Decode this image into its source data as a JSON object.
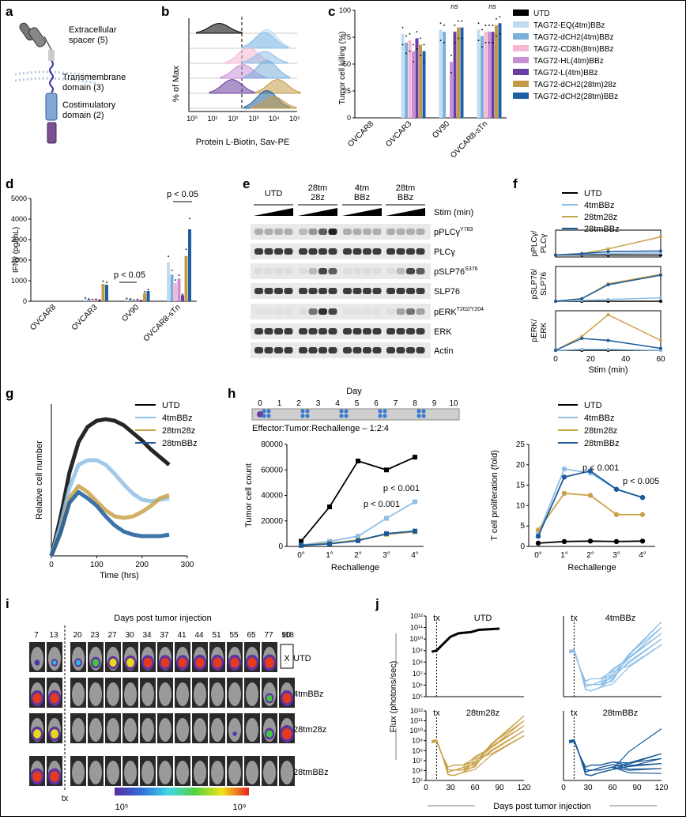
{
  "colors": {
    "UTD": "#000000",
    "EQ": "#bfdcf2",
    "dCH2": "#7aaedb",
    "CD8h": "#f6b7d3",
    "HL": "#c98fd6",
    "L": "#6a3ea1",
    "dCH2_28": "#c59a47",
    "dCH2_28BBz": "#1e5fa3",
    "c4tm": "#8fbfe6",
    "c28z": "#c9a24a",
    "c28BBz": "#1a5a9a"
  },
  "panels": {
    "a": {
      "letter": "a",
      "labels": [
        "Extracellular",
        "spacer (5)",
        "Transmembrane",
        "domain (3)",
        "Costimulatory",
        "domain (2)"
      ]
    },
    "b": {
      "letter": "b",
      "ylabel": "% of Max",
      "xlabel": "Protein L-Biotin, Sav-PE",
      "ticks": [
        "10⁰",
        "10¹",
        "10²",
        "10³",
        "10⁴",
        "10⁵"
      ]
    },
    "c": {
      "letter": "c",
      "ylabel": "Tumor cell killing (%)",
      "yticks": [
        "0",
        "25",
        "50",
        "75",
        "100"
      ],
      "ns": "ns"
    },
    "d": {
      "letter": "d",
      "ylabel": "IFNγ (pg/mL)",
      "yticks": [
        "0",
        "1000",
        "2000",
        "3000",
        "4000",
        "5000"
      ],
      "p1": "p < 0.05",
      "p2": "p < 0.05"
    },
    "e": {
      "letter": "e",
      "groups": [
        "UTD",
        "28tm\n28z",
        "4tm\nBBz",
        "28tm\nBBz"
      ],
      "stim": "Stim (min)",
      "rows": [
        "pPLCγ",
        "PLCγ",
        "pSLP76",
        "SLP76",
        "pERK",
        "ERK",
        "Actin"
      ],
      "row_sup": [
        "Y783",
        "",
        "S376",
        "",
        "T202/Y204",
        "",
        ""
      ]
    },
    "f": {
      "letter": "f",
      "xlabel": "Stim (min)",
      "ylabels": [
        "pPLCγ/\nPLCγ",
        "pSLP76/\nSLP76",
        "pERK/\nERK"
      ],
      "xticks": [
        "0",
        "20",
        "40",
        "60"
      ],
      "legend": [
        "UTD",
        "4tmBBz",
        "28tm28z",
        "28tmBBz"
      ]
    },
    "g": {
      "letter": "g",
      "ylabel": "Relative cell number",
      "xlabel": "Time (hrs)",
      "xticks": [
        "0",
        "100",
        "200",
        "300"
      ],
      "legend": [
        "UTD",
        "4tmBBz",
        "28tm28z",
        "28tmBBz"
      ]
    },
    "h": {
      "letter": "h",
      "day": "Day",
      "days": [
        "0",
        "1",
        "2",
        "3",
        "4",
        "5",
        "6",
        "7",
        "8",
        "9",
        "10"
      ],
      "ratio": "Effector:Tumor:Rechallenge – 1:2:4",
      "ylabel1": "Tumor cell count",
      "ylabel2": "T cell proliferation (fold)",
      "xlabel": "Rechallenge",
      "xticks": [
        "0°",
        "1°",
        "2°",
        "3°",
        "4°"
      ],
      "yticks1": [
        "0",
        "20000",
        "40000",
        "60000",
        "80000"
      ],
      "yticks2": [
        "0",
        "5",
        "10",
        "15",
        "20",
        "25"
      ],
      "p1a": "p < 0.001",
      "p1b": "p < 0.001",
      "p2a": "p < 0.001",
      "p2b": "p < 0.005",
      "legend": [
        "UTD",
        "4tmBBz",
        "28tm28z",
        "28tmBBz"
      ]
    },
    "i": {
      "letter": "i",
      "title": "Days post tumor injection",
      "days": [
        "7",
        "13",
        "20",
        "23",
        "27",
        "30",
        "34",
        "37",
        "41",
        "44",
        "51",
        "55",
        "65",
        "77",
        "90",
        "118"
      ],
      "rows": [
        "UTD",
        "4tmBBz",
        "28tm28z",
        "28tmBBz"
      ],
      "tx": "tx",
      "x": "X",
      "cmin": "10⁵",
      "cmax": "10⁹"
    },
    "j": {
      "letter": "j",
      "ylabel": "Flux (photons/sec)",
      "xlabel": "Days post tumor injection",
      "titles": [
        "UTD",
        "4tmBBz",
        "28tm28z",
        "28tmBBz"
      ],
      "tx": "tx",
      "xticks": [
        "0",
        "30",
        "60",
        "90",
        "120"
      ],
      "yticks": [
        "10⁵",
        "10⁶",
        "10⁷",
        "10⁸",
        "10⁹",
        "10¹⁰",
        "10¹¹",
        "10¹²"
      ]
    }
  },
  "chart_data": [
    {
      "type": "bar",
      "panel": "c",
      "title": "",
      "ylabel": "Tumor cell killing (%)",
      "ylim": [
        0,
        100
      ],
      "categories": [
        "OVCAR8",
        "OVCAR3",
        "OV90",
        "OVCAR8-sTn"
      ],
      "series": [
        {
          "name": "UTD",
          "values": [
            0,
            0,
            0,
            0
          ]
        },
        {
          "name": "TAG72-EQ(4tm)BBz",
          "values": [
            0,
            78,
            82,
            82
          ]
        },
        {
          "name": "TAG72-dCH2(4tm)BBz",
          "values": [
            0,
            70,
            80,
            76
          ]
        },
        {
          "name": "TAG72-CD8h(8tm)BBz",
          "values": [
            0,
            72,
            0,
            80
          ]
        },
        {
          "name": "TAG72-HL(4tm)BBz",
          "values": [
            0,
            62,
            52,
            80
          ]
        },
        {
          "name": "TAG72-L(4tm)BBz",
          "values": [
            0,
            74,
            80,
            80
          ]
        },
        {
          "name": "TAG72-dCH2(28tm)28z",
          "values": [
            0,
            68,
            84,
            86
          ]
        },
        {
          "name": "TAG72-dCH2(28tm)BBz",
          "values": [
            0,
            62,
            84,
            88
          ]
        }
      ]
    },
    {
      "type": "bar",
      "panel": "d",
      "ylabel": "IFNγ (pg/mL)",
      "ylim": [
        0,
        5000
      ],
      "categories": [
        "OVCAR8",
        "OVCAR3",
        "OV90",
        "OVCAR8-sTn"
      ],
      "series": [
        {
          "name": "UTD",
          "values": [
            0,
            0,
            0,
            0
          ]
        },
        {
          "name": "EQ",
          "values": [
            0,
            150,
            120,
            1900
          ]
        },
        {
          "name": "dCH2",
          "values": [
            0,
            100,
            100,
            1300
          ]
        },
        {
          "name": "CD8h",
          "values": [
            0,
            80,
            60,
            900
          ]
        },
        {
          "name": "HL",
          "values": [
            0,
            90,
            80,
            1100
          ]
        },
        {
          "name": "L",
          "values": [
            0,
            60,
            40,
            300
          ]
        },
        {
          "name": "28z",
          "values": [
            0,
            850,
            400,
            2200
          ]
        },
        {
          "name": "28BBz",
          "values": [
            0,
            800,
            500,
            3500
          ]
        }
      ]
    },
    {
      "type": "line",
      "panel": "f",
      "x": [
        0,
        15,
        30,
        60
      ],
      "subplots": [
        {
          "ylabel": "pPLCγ/PLCγ",
          "series": [
            {
              "name": "UTD",
              "values": [
                0.3,
                0.3,
                0.3,
                0.3
              ]
            },
            {
              "name": "4tmBBz",
              "values": [
                0.3,
                0.4,
                0.5,
                0.6
              ]
            },
            {
              "name": "28tm28z",
              "values": [
                0.3,
                0.5,
                1.2,
                3
              ]
            },
            {
              "name": "28tmBBz",
              "values": [
                0.3,
                0.5,
                0.8,
                0.9
              ]
            }
          ]
        },
        {
          "ylabel": "pSLP76/SLP76",
          "series": [
            {
              "name": "UTD",
              "values": [
                0,
                0,
                0,
                0
              ]
            },
            {
              "name": "4tmBBz",
              "values": [
                0,
                0.05,
                0.1,
                0.2
              ]
            },
            {
              "name": "28tm28z",
              "values": [
                0,
                0.15,
                1.0,
                1.55
              ]
            },
            {
              "name": "28tmBBz",
              "values": [
                0,
                0.15,
                0.95,
                1.5
              ]
            }
          ]
        },
        {
          "ylabel": "pERK/ERK",
          "series": [
            {
              "name": "UTD",
              "values": [
                0,
                0,
                0,
                0
              ]
            },
            {
              "name": "4tmBBz",
              "values": [
                0,
                0.05,
                0.05,
                0
              ]
            },
            {
              "name": "28tm28z",
              "values": [
                0,
                0.7,
                1.8,
                0.5
              ]
            },
            {
              "name": "28tmBBz",
              "values": [
                0,
                0.6,
                0.5,
                0.1
              ]
            }
          ]
        }
      ]
    },
    {
      "type": "line",
      "panel": "g",
      "xlabel": "Time (hrs)",
      "ylabel": "Relative cell number",
      "xlim": [
        0,
        300
      ],
      "series": [
        {
          "name": "UTD",
          "x": [
            0,
            20,
            40,
            60,
            80,
            100,
            120,
            140,
            160,
            180,
            200,
            220,
            240,
            260
          ],
          "values": [
            0,
            2.5,
            5.5,
            7.5,
            8.5,
            8.9,
            9.0,
            8.9,
            8.6,
            8.1,
            7.6,
            7.0,
            6.5,
            6.0
          ]
        },
        {
          "name": "4tmBBz",
          "x": [
            0,
            20,
            40,
            60,
            80,
            100,
            120,
            140,
            160,
            180,
            200,
            220,
            240,
            260
          ],
          "values": [
            0,
            2,
            4.5,
            6.0,
            6.3,
            6.3,
            6.0,
            5.4,
            4.7,
            4.1,
            3.7,
            3.6,
            3.7,
            3.8
          ]
        },
        {
          "name": "28tm28z",
          "x": [
            0,
            20,
            40,
            60,
            80,
            100,
            120,
            140,
            160,
            180,
            200,
            220,
            240,
            260
          ],
          "values": [
            0,
            1.5,
            3.8,
            4.6,
            4.2,
            3.6,
            3.0,
            2.6,
            2.5,
            2.6,
            2.9,
            3.3,
            3.8,
            4.0
          ]
        },
        {
          "name": "28tmBBz",
          "x": [
            0,
            20,
            40,
            60,
            80,
            100,
            120,
            140,
            160,
            180,
            200,
            220,
            240,
            260
          ],
          "values": [
            0,
            1.5,
            3.5,
            4.2,
            3.8,
            3.3,
            2.6,
            2.0,
            1.6,
            1.4,
            1.3,
            1.3,
            1.3,
            1.4
          ]
        }
      ]
    },
    {
      "type": "line",
      "panel": "h-tumor",
      "ylabel": "Tumor cell count",
      "xlabel": "Rechallenge",
      "categories": [
        "0°",
        "1°",
        "2°",
        "3°",
        "4°"
      ],
      "ylim": [
        0,
        80000
      ],
      "series": [
        {
          "name": "UTD",
          "values": [
            4000,
            31000,
            67000,
            60000,
            70000
          ]
        },
        {
          "name": "4tmBBz",
          "values": [
            1000,
            4000,
            8000,
            22000,
            35000
          ]
        },
        {
          "name": "28tm28z",
          "values": [
            800,
            2500,
            5000,
            9500,
            11500
          ]
        },
        {
          "name": "28tmBBz",
          "values": [
            800,
            2000,
            4500,
            10000,
            12000
          ]
        }
      ]
    },
    {
      "type": "line",
      "panel": "h-prolif",
      "ylabel": "T cell proliferation (fold)",
      "xlabel": "Rechallenge",
      "categories": [
        "0°",
        "1°",
        "2°",
        "3°",
        "4°"
      ],
      "ylim": [
        0,
        25
      ],
      "series": [
        {
          "name": "UTD",
          "values": [
            0.8,
            1.2,
            1.3,
            1.2,
            1.3
          ]
        },
        {
          "name": "4tmBBz",
          "values": [
            3,
            19,
            18,
            14,
            12
          ]
        },
        {
          "name": "28tm28z",
          "values": [
            4,
            13,
            12.5,
            7.8,
            7.8
          ]
        },
        {
          "name": "28tmBBz",
          "values": [
            2.5,
            17,
            18.5,
            14,
            12
          ]
        }
      ]
    }
  ]
}
